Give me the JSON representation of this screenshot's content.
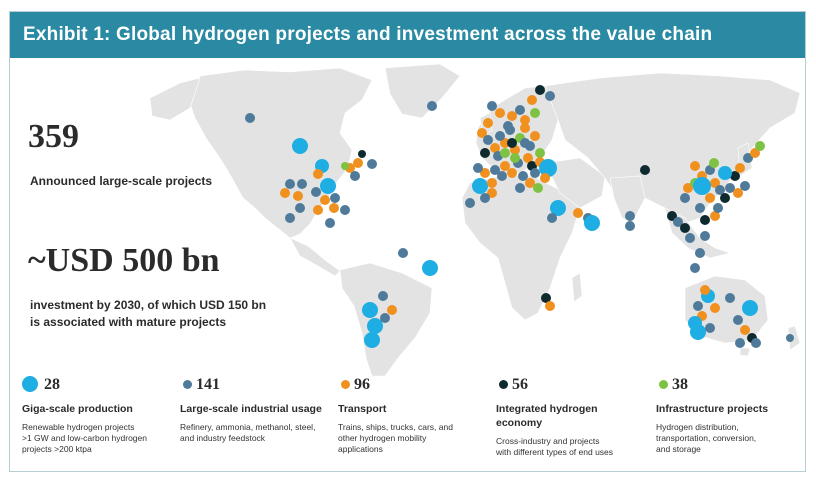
{
  "header": {
    "title": "Exhibit 1: Global hydrogen projects and investment across the value chain"
  },
  "stats": {
    "projects_count": "359",
    "projects_label": "Announced large-scale projects",
    "investment": "~USD 500 bn",
    "investment_label_line1": "investment by 2030, of which USD 150 bn",
    "investment_label_line2": "is associated with mature projects"
  },
  "colors": {
    "giga": "#1eaee3",
    "industrial": "#4f7a99",
    "transport": "#f0901e",
    "integrated": "#0f2a2e",
    "infrastructure": "#7dc242",
    "land": "#e3e3e3",
    "header": "#2a8aa3"
  },
  "legend": [
    {
      "key": "giga",
      "count": "28",
      "title": "Giga-scale production",
      "desc": [
        "Renewable hydrogen projects",
        ">1 GW and low-carbon hydrogen",
        "projects >200 ktpa"
      ]
    },
    {
      "key": "industrial",
      "count": "141",
      "title": "Large-scale industrial usage",
      "desc": [
        "Refinery, ammonia, methanol, steel,",
        "and industry feedstock"
      ]
    },
    {
      "key": "transport",
      "count": "96",
      "title": "Transport",
      "desc": [
        "Trains, ships, trucks, cars, and",
        "other hydrogen mobility",
        "applications"
      ]
    },
    {
      "key": "integrated",
      "count": "56",
      "title": "Integrated hydrogen economy",
      "desc": [
        "Cross-industry and projects",
        "with different types of end uses"
      ]
    },
    {
      "key": "infrastructure",
      "count": "38",
      "title": "Infrastructure projects",
      "desc": [
        "Hydrogen distribution,",
        "transportation, conversion,",
        "and storage"
      ]
    }
  ]
}
